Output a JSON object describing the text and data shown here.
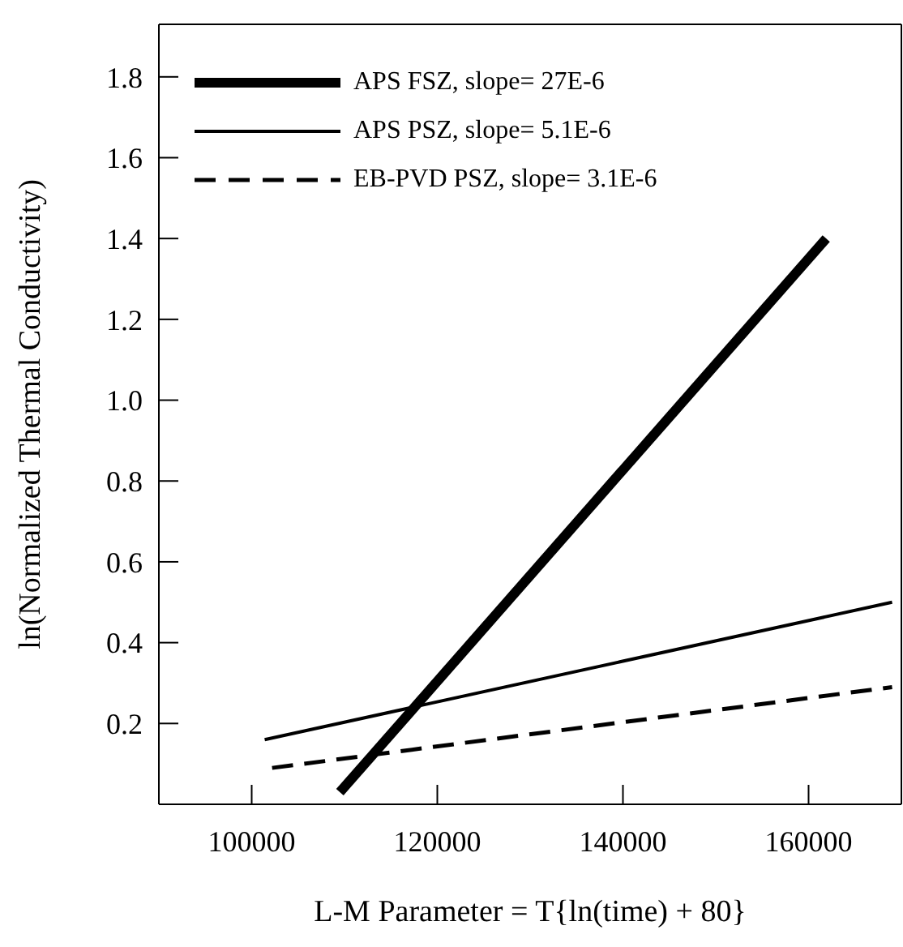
{
  "chart_data": {
    "type": "line",
    "xlabel": "L-M Parameter = T{ln(time) + 80}",
    "ylabel": "ln(Normalized Thermal Conductivity)",
    "xlim": [
      90000,
      170000
    ],
    "xticks": [
      100000,
      120000,
      140000,
      160000
    ],
    "ylim": [
      0,
      1.93
    ],
    "yticks": [
      {
        "value": 0.2,
        "label": "0.2"
      },
      {
        "value": 0.4,
        "label": "0.4"
      },
      {
        "value": 0.6,
        "label": "0.6"
      },
      {
        "value": 0.8,
        "label": "0.8"
      },
      {
        "value": 1,
        "label": "1.0"
      },
      {
        "value": 1.2,
        "label": "1.2"
      },
      {
        "value": 1.4,
        "label": "1.4"
      },
      {
        "value": 1.6,
        "label": "1.6"
      },
      {
        "value": 1.8,
        "label": "1.8"
      }
    ],
    "grid": false,
    "legend": "top left",
    "marker": "none",
    "series": [
      {
        "name": "APS FSZ, slope= 27E-6",
        "color": "#000000",
        "line_style": "solid",
        "x": [
          109500,
          161900
        ],
        "values": [
          0.03,
          1.4
        ]
      },
      {
        "name": "APS PSZ, slope= 5.1E-6",
        "color": "#000000",
        "line_style": "solid",
        "x": [
          101400,
          169000
        ],
        "values": [
          0.16,
          0.5
        ]
      },
      {
        "name": "EB-PVD PSZ, slope= 3.1E-6",
        "color": "#000000",
        "line_style": "dashed",
        "x": [
          102200,
          169000
        ],
        "values": [
          0.09,
          0.29
        ]
      }
    ]
  }
}
